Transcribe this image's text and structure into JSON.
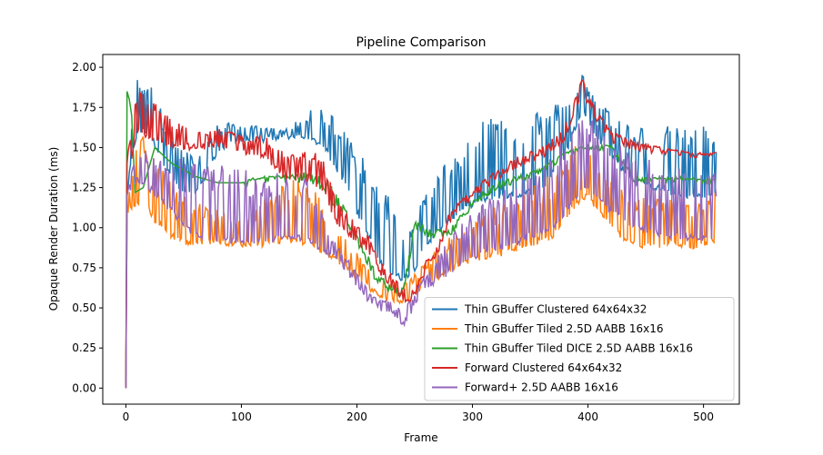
{
  "chart_data": {
    "type": "line",
    "title": "Pipeline Comparison",
    "xlabel": "Frame",
    "ylabel": "Opaque Render Duration (ms)",
    "xlim": [
      -20,
      531
    ],
    "ylim": [
      -0.1,
      2.08
    ],
    "xticks": [
      0,
      100,
      200,
      300,
      400,
      500
    ],
    "yticks": [
      0.0,
      0.25,
      0.5,
      0.75,
      1.0,
      1.25,
      1.5,
      1.75,
      2.0
    ],
    "ytick_labels": [
      "0.00",
      "0.25",
      "0.50",
      "0.75",
      "1.00",
      "1.25",
      "1.50",
      "1.75",
      "2.00"
    ],
    "grid": false,
    "legend_position": "lower-right",
    "frames": 512,
    "series": [
      {
        "name": "Thin GBuffer Clustered 64x64x32",
        "color": "#1f77b4",
        "base": [
          [
            0,
            0
          ],
          [
            1,
            1.2
          ],
          [
            5,
            1.45
          ],
          [
            10,
            1.6
          ],
          [
            20,
            1.6
          ],
          [
            30,
            1.45
          ],
          [
            40,
            1.3
          ],
          [
            50,
            1.22
          ],
          [
            60,
            1.2
          ],
          [
            80,
            1.48
          ],
          [
            100,
            1.55
          ],
          [
            120,
            1.55
          ],
          [
            140,
            1.57
          ],
          [
            160,
            1.55
          ],
          [
            170,
            1.52
          ],
          [
            180,
            1.4
          ],
          [
            190,
            1.28
          ],
          [
            200,
            1.1
          ],
          [
            210,
            0.95
          ],
          [
            220,
            0.78
          ],
          [
            230,
            0.72
          ],
          [
            240,
            0.68
          ],
          [
            250,
            0.75
          ],
          [
            260,
            0.9
          ],
          [
            280,
            1.05
          ],
          [
            300,
            1.15
          ],
          [
            320,
            1.2
          ],
          [
            340,
            1.2
          ],
          [
            360,
            1.25
          ],
          [
            380,
            1.45
          ],
          [
            395,
            1.75
          ],
          [
            405,
            1.6
          ],
          [
            420,
            1.45
          ],
          [
            440,
            1.28
          ],
          [
            460,
            1.25
          ],
          [
            480,
            1.2
          ],
          [
            511,
            1.2
          ]
        ],
        "spike": [
          [
            0,
            0
          ],
          [
            10,
            0.35
          ],
          [
            30,
            0.3
          ],
          [
            60,
            0.25
          ],
          [
            100,
            0.1
          ],
          [
            140,
            0.05
          ],
          [
            170,
            0.25
          ],
          [
            200,
            0.4
          ],
          [
            230,
            0.5
          ],
          [
            250,
            0.3
          ],
          [
            280,
            0.4
          ],
          [
            320,
            0.55
          ],
          [
            360,
            0.5
          ],
          [
            380,
            0.35
          ],
          [
            400,
            0.2
          ],
          [
            420,
            0.3
          ],
          [
            460,
            0.4
          ],
          [
            511,
            0.45
          ]
        ]
      },
      {
        "name": "Thin GBuffer Tiled 2.5D AABB 16x16",
        "color": "#ff7f0e",
        "base": [
          [
            0,
            0
          ],
          [
            1,
            1.1
          ],
          [
            5,
            1.12
          ],
          [
            15,
            1.18
          ],
          [
            25,
            1.05
          ],
          [
            40,
            0.95
          ],
          [
            55,
            0.9
          ],
          [
            70,
            0.92
          ],
          [
            100,
            0.9
          ],
          [
            120,
            0.9
          ],
          [
            140,
            0.93
          ],
          [
            160,
            0.9
          ],
          [
            180,
            0.82
          ],
          [
            200,
            0.7
          ],
          [
            215,
            0.6
          ],
          [
            225,
            0.55
          ],
          [
            235,
            0.55
          ],
          [
            245,
            0.55
          ],
          [
            260,
            0.65
          ],
          [
            275,
            0.72
          ],
          [
            290,
            0.78
          ],
          [
            310,
            0.82
          ],
          [
            330,
            0.85
          ],
          [
            350,
            0.9
          ],
          [
            370,
            0.95
          ],
          [
            390,
            1.15
          ],
          [
            400,
            1.2
          ],
          [
            410,
            1.1
          ],
          [
            420,
            1.0
          ],
          [
            435,
            0.92
          ],
          [
            450,
            0.88
          ],
          [
            470,
            0.9
          ],
          [
            490,
            0.88
          ],
          [
            511,
            0.93
          ]
        ],
        "spike": [
          [
            0,
            0
          ],
          [
            10,
            0.4
          ],
          [
            30,
            0.4
          ],
          [
            60,
            0.25
          ],
          [
            100,
            0.15
          ],
          [
            130,
            0.35
          ],
          [
            160,
            0.4
          ],
          [
            180,
            0.2
          ],
          [
            200,
            0.15
          ],
          [
            230,
            0.1
          ],
          [
            260,
            0.15
          ],
          [
            300,
            0.25
          ],
          [
            340,
            0.35
          ],
          [
            380,
            0.4
          ],
          [
            420,
            0.3
          ],
          [
            460,
            0.3
          ],
          [
            511,
            0.3
          ]
        ]
      },
      {
        "name": "Thin GBuffer Tiled DICE 2.5D AABB 16x16",
        "color": "#2ca02c",
        "base": [
          [
            0,
            0
          ],
          [
            1,
            1.85
          ],
          [
            3,
            1.8
          ],
          [
            5,
            1.7
          ],
          [
            8,
            1.22
          ],
          [
            15,
            1.25
          ],
          [
            25,
            1.5
          ],
          [
            40,
            1.4
          ],
          [
            60,
            1.32
          ],
          [
            80,
            1.28
          ],
          [
            100,
            1.28
          ],
          [
            120,
            1.3
          ],
          [
            140,
            1.3
          ],
          [
            160,
            1.3
          ],
          [
            175,
            1.2
          ],
          [
            190,
            1.05
          ],
          [
            205,
            0.85
          ],
          [
            215,
            0.7
          ],
          [
            225,
            0.62
          ],
          [
            240,
            0.58
          ],
          [
            250,
            1.0
          ],
          [
            265,
            0.95
          ],
          [
            280,
            0.95
          ],
          [
            300,
            1.15
          ],
          [
            320,
            1.25
          ],
          [
            340,
            1.3
          ],
          [
            360,
            1.35
          ],
          [
            380,
            1.45
          ],
          [
            400,
            1.5
          ],
          [
            420,
            1.5
          ],
          [
            440,
            1.3
          ],
          [
            460,
            1.3
          ],
          [
            511,
            1.3
          ]
        ],
        "spike": [
          [
            0,
            0
          ],
          [
            100,
            0
          ],
          [
            160,
            0.05
          ],
          [
            175,
            0.1
          ],
          [
            200,
            0.05
          ],
          [
            511,
            0
          ]
        ]
      },
      {
        "name": "Forward Clustered 64x64x32",
        "color": "#d62728",
        "base": [
          [
            0,
            0
          ],
          [
            1,
            1.4
          ],
          [
            5,
            1.45
          ],
          [
            10,
            1.6
          ],
          [
            20,
            1.55
          ],
          [
            40,
            1.52
          ],
          [
            60,
            1.5
          ],
          [
            80,
            1.52
          ],
          [
            100,
            1.48
          ],
          [
            120,
            1.45
          ],
          [
            140,
            1.3
          ],
          [
            160,
            1.3
          ],
          [
            170,
            1.25
          ],
          [
            180,
            1.05
          ],
          [
            195,
            0.95
          ],
          [
            210,
            0.85
          ],
          [
            220,
            0.72
          ],
          [
            230,
            0.62
          ],
          [
            240,
            0.56
          ],
          [
            250,
            0.55
          ],
          [
            260,
            0.75
          ],
          [
            270,
            0.85
          ],
          [
            280,
            1.05
          ],
          [
            300,
            1.2
          ],
          [
            320,
            1.3
          ],
          [
            340,
            1.4
          ],
          [
            360,
            1.45
          ],
          [
            380,
            1.55
          ],
          [
            395,
            1.85
          ],
          [
            405,
            1.7
          ],
          [
            420,
            1.55
          ],
          [
            440,
            1.5
          ],
          [
            470,
            1.47
          ],
          [
            500,
            1.45
          ],
          [
            511,
            1.47
          ]
        ],
        "spike": [
          [
            0,
            0
          ],
          [
            10,
            0.35
          ],
          [
            30,
            0.2
          ],
          [
            60,
            0.1
          ],
          [
            100,
            0.1
          ],
          [
            140,
            0.15
          ],
          [
            170,
            0.2
          ],
          [
            200,
            0.1
          ],
          [
            230,
            0.08
          ],
          [
            260,
            0.05
          ],
          [
            300,
            0.05
          ],
          [
            360,
            0.05
          ],
          [
            380,
            0.1
          ],
          [
            420,
            0.05
          ],
          [
            511,
            0
          ]
        ]
      },
      {
        "name": "Forward+ 2.5D AABB 16x16",
        "color": "#9467bd",
        "base": [
          [
            0,
            0
          ],
          [
            1,
            1.2
          ],
          [
            5,
            1.25
          ],
          [
            10,
            1.3
          ],
          [
            20,
            1.25
          ],
          [
            40,
            1.1
          ],
          [
            60,
            0.95
          ],
          [
            80,
            0.92
          ],
          [
            100,
            0.92
          ],
          [
            120,
            0.92
          ],
          [
            140,
            0.95
          ],
          [
            160,
            0.92
          ],
          [
            180,
            0.82
          ],
          [
            195,
            0.7
          ],
          [
            210,
            0.55
          ],
          [
            220,
            0.5
          ],
          [
            230,
            0.48
          ],
          [
            240,
            0.4
          ],
          [
            250,
            0.52
          ],
          [
            260,
            0.62
          ],
          [
            275,
            0.7
          ],
          [
            290,
            0.78
          ],
          [
            310,
            0.85
          ],
          [
            330,
            0.88
          ],
          [
            350,
            0.95
          ],
          [
            370,
            1.0
          ],
          [
            390,
            1.2
          ],
          [
            400,
            1.25
          ],
          [
            420,
            1.1
          ],
          [
            440,
            1.0
          ],
          [
            470,
            0.95
          ],
          [
            500,
            0.93
          ],
          [
            511,
            0.93
          ]
        ],
        "spike": [
          [
            0,
            0
          ],
          [
            10,
            0.2
          ],
          [
            30,
            0.3
          ],
          [
            60,
            0.5
          ],
          [
            100,
            0.45
          ],
          [
            140,
            0.4
          ],
          [
            160,
            0.4
          ],
          [
            180,
            0.1
          ],
          [
            220,
            0.05
          ],
          [
            260,
            0.1
          ],
          [
            300,
            0.3
          ],
          [
            340,
            0.4
          ],
          [
            380,
            0.5
          ],
          [
            420,
            0.45
          ],
          [
            460,
            0.45
          ],
          [
            511,
            0.4
          ]
        ]
      }
    ]
  }
}
